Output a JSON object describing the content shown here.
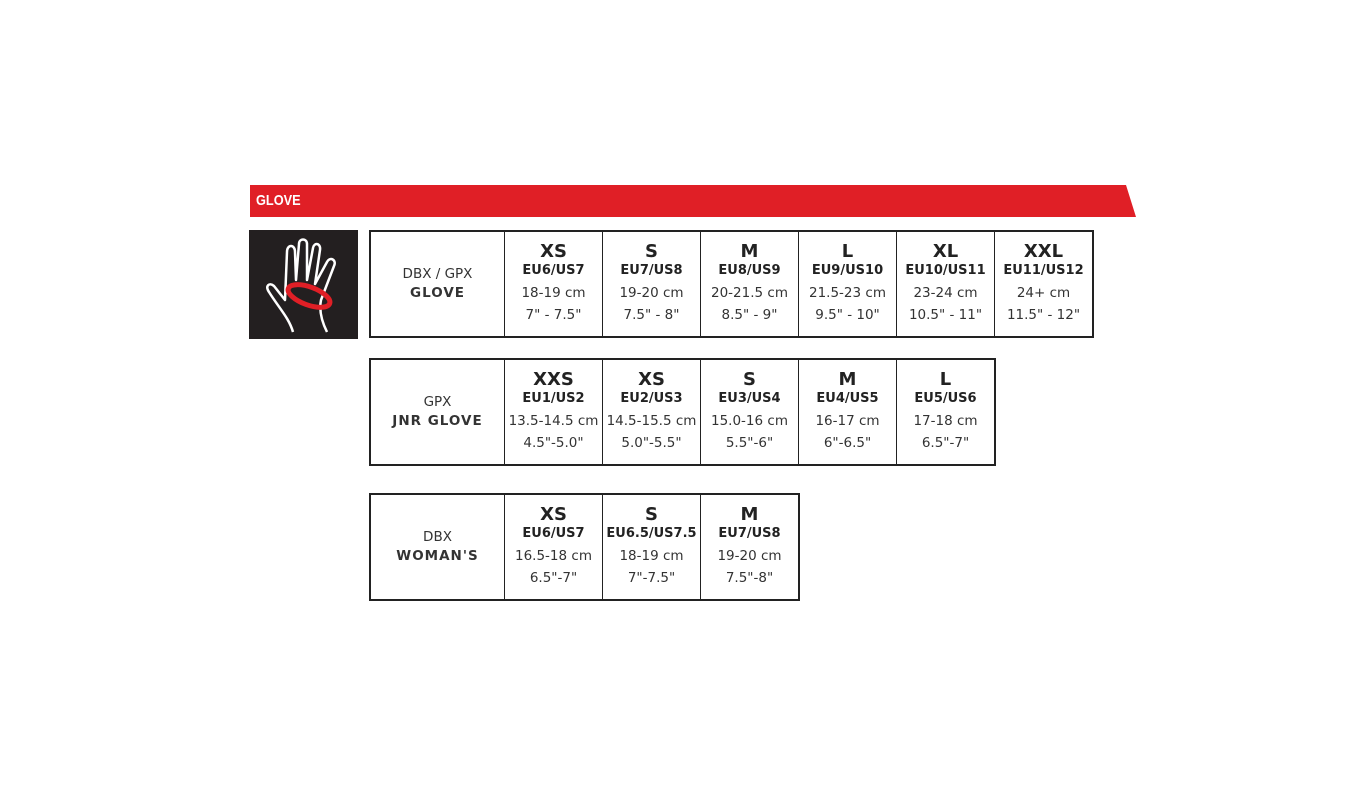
{
  "banner": {
    "title": "GLOVE",
    "color": "#e01f26"
  },
  "icon": "hand-measurement-icon",
  "tables": [
    {
      "line1": "DBX / GPX",
      "line2": "GLOVE",
      "sizes": [
        {
          "size": "XS",
          "eu": "EU6/US7",
          "cm": "18-19 cm",
          "in": "7\" - 7.5\""
        },
        {
          "size": "S",
          "eu": "EU7/US8",
          "cm": "19-20 cm",
          "in": "7.5\" - 8\""
        },
        {
          "size": "M",
          "eu": "EU8/US9",
          "cm": "20-21.5 cm",
          "in": "8.5\" - 9\""
        },
        {
          "size": "L",
          "eu": "EU9/US10",
          "cm": "21.5-23 cm",
          "in": "9.5\" - 10\""
        },
        {
          "size": "XL",
          "eu": "EU10/US11",
          "cm": "23-24 cm",
          "in": "10.5\" - 11\""
        },
        {
          "size": "XXL",
          "eu": "EU11/US12",
          "cm": "24+ cm",
          "in": "11.5\" - 12\""
        }
      ]
    },
    {
      "line1": "GPX",
      "line2": "JNR GLOVE",
      "sizes": [
        {
          "size": "XXS",
          "eu": "EU1/US2",
          "cm": "13.5-14.5 cm",
          "in": "4.5\"-5.0\""
        },
        {
          "size": "XS",
          "eu": "EU2/US3",
          "cm": "14.5-15.5 cm",
          "in": "5.0\"-5.5\""
        },
        {
          "size": "S",
          "eu": "EU3/US4",
          "cm": "15.0-16 cm",
          "in": "5.5\"-6\""
        },
        {
          "size": "M",
          "eu": "EU4/US5",
          "cm": "16-17 cm",
          "in": "6\"-6.5\""
        },
        {
          "size": "L",
          "eu": "EU5/US6",
          "cm": "17-18 cm",
          "in": "6.5\"-7\""
        }
      ]
    },
    {
      "line1": "DBX",
      "line2": "WOMAN'S",
      "sizes": [
        {
          "size": "XS",
          "eu": "EU6/US7",
          "cm": "16.5-18 cm",
          "in": "6.5\"-7\""
        },
        {
          "size": "S",
          "eu": "EU6.5/US7.5",
          "cm": "18-19 cm",
          "in": "7\"-7.5\""
        },
        {
          "size": "M",
          "eu": "EU7/US8",
          "cm": "19-20 cm",
          "in": "7.5\"-8\""
        }
      ]
    }
  ]
}
